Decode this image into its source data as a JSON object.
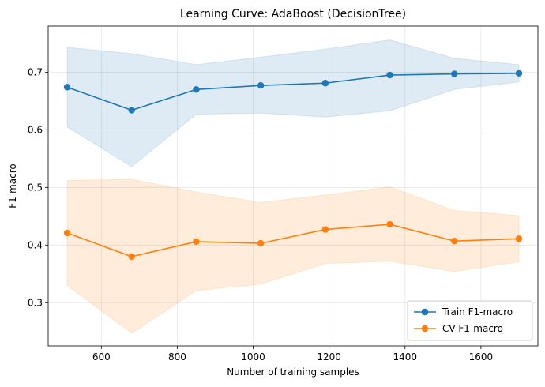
{
  "chart_data": {
    "type": "line",
    "title": "Learning Curve: AdaBoost (DecisionTree)",
    "xlabel": "Number of training samples",
    "ylabel": "F1-macro",
    "xlim": [
      460,
      1750
    ],
    "ylim": [
      0.225,
      0.78
    ],
    "xticks": [
      600,
      800,
      1000,
      1200,
      1400,
      1600
    ],
    "yticks": [
      0.3,
      0.4,
      0.5,
      0.6,
      0.7
    ],
    "x": [
      510,
      680,
      850,
      1020,
      1190,
      1360,
      1530,
      1700
    ],
    "grid": true,
    "legend_position": "lower-right",
    "series": [
      {
        "name": "Train F1-macro",
        "color": "#1f77b4",
        "values": [
          0.674,
          0.634,
          0.67,
          0.677,
          0.681,
          0.695,
          0.697,
          0.698
        ],
        "upper": [
          0.743,
          0.732,
          0.713,
          0.726,
          0.74,
          0.756,
          0.724,
          0.713
        ],
        "lower": [
          0.605,
          0.536,
          0.627,
          0.629,
          0.622,
          0.633,
          0.67,
          0.683
        ]
      },
      {
        "name": "CV F1-macro",
        "color": "#ff7f0e",
        "values": [
          0.421,
          0.38,
          0.406,
          0.403,
          0.427,
          0.436,
          0.407,
          0.411
        ],
        "upper": [
          0.512,
          0.514,
          0.492,
          0.474,
          0.487,
          0.501,
          0.46,
          0.451
        ],
        "lower": [
          0.33,
          0.247,
          0.321,
          0.332,
          0.368,
          0.372,
          0.354,
          0.371
        ]
      }
    ]
  }
}
